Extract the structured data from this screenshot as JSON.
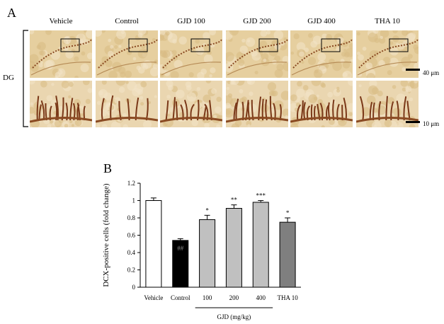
{
  "panel_a": {
    "letter": "A",
    "row_label": "DG",
    "columns": [
      "Vehicle",
      "Control",
      "GJD 100",
      "GJD 200",
      "GJD 400",
      "THA 10"
    ],
    "scale_top": "40 μm",
    "scale_bottom": "10 μm"
  },
  "panel_b": {
    "letter": "B",
    "group_label": "GJD (mg/kg)"
  },
  "chart_data": {
    "type": "bar",
    "categories": [
      "Vehicle",
      "Control",
      "100",
      "200",
      "400",
      "THA 10"
    ],
    "values": [
      1.0,
      0.54,
      0.78,
      0.91,
      0.98,
      0.75
    ],
    "errors": [
      0.03,
      0.02,
      0.05,
      0.04,
      0.02,
      0.05
    ],
    "significance": [
      "",
      "##",
      "*",
      "**",
      "***",
      "*"
    ],
    "bar_colors": [
      "#ffffff",
      "#000000",
      "#c0c0c0",
      "#c0c0c0",
      "#c0c0c0",
      "#7f7f7f"
    ],
    "ylabel": "DCX-positive cells (fold change)",
    "xlabel": "GJD (mg/kg)",
    "ylim": [
      0,
      1.2
    ],
    "yticks": [
      "0",
      "0.2",
      "0.4",
      "0.6",
      "0.8",
      "1",
      "1.2"
    ],
    "grid": false,
    "legend": "none"
  }
}
